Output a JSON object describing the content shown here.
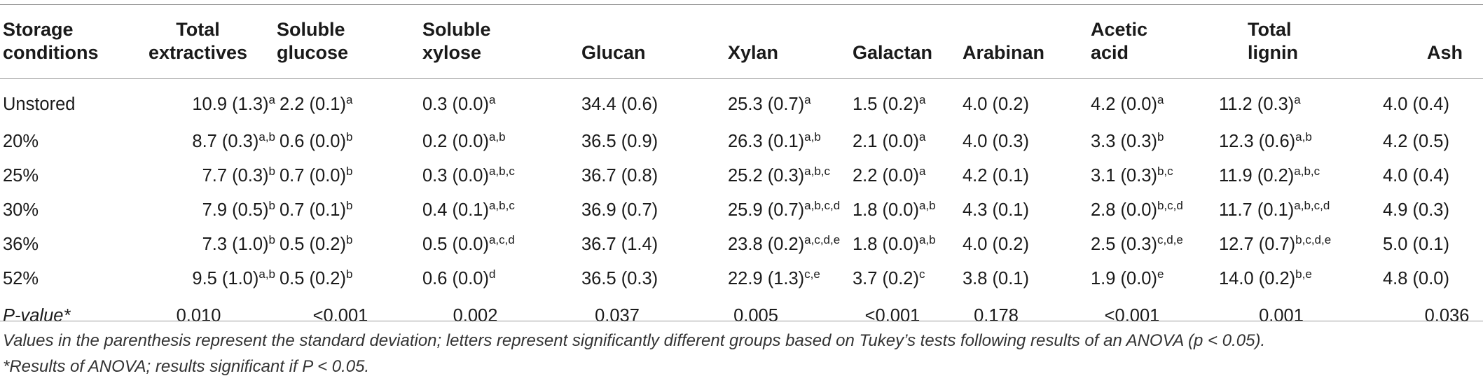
{
  "table": {
    "headers": [
      [
        "Storage",
        "conditions"
      ],
      [
        "Total",
        "extractives"
      ],
      [
        "Soluble",
        "glucose"
      ],
      [
        "Soluble",
        "xylose"
      ],
      [
        "",
        "Glucan"
      ],
      [
        "",
        "Xylan"
      ],
      [
        "",
        "Galactan"
      ],
      [
        "",
        "Arabinan"
      ],
      [
        "Acetic",
        "acid"
      ],
      [
        "Total",
        "lignin"
      ],
      [
        "",
        "Ash"
      ]
    ],
    "rows": [
      {
        "label": "Unstored",
        "cells": [
          {
            "v": "10.9 (1.3)",
            "s": "a"
          },
          {
            "v": "2.2 (0.1)",
            "s": "a"
          },
          {
            "v": "0.3 (0.0)",
            "s": "a"
          },
          {
            "v": "34.4 (0.6)",
            "s": ""
          },
          {
            "v": "25.3 (0.7)",
            "s": "a"
          },
          {
            "v": "1.5 (0.2)",
            "s": "a"
          },
          {
            "v": "4.0 (0.2)",
            "s": ""
          },
          {
            "v": "4.2 (0.0)",
            "s": "a"
          },
          {
            "v": "11.2 (0.3)",
            "s": "a"
          },
          {
            "v": "4.0 (0.4)",
            "s": ""
          }
        ]
      },
      {
        "label": "20%",
        "cells": [
          {
            "v": "8.7 (0.3)",
            "s": "a,b"
          },
          {
            "v": "0.6 (0.0)",
            "s": "b"
          },
          {
            "v": "0.2 (0.0)",
            "s": "a,b"
          },
          {
            "v": "36.5 (0.9)",
            "s": ""
          },
          {
            "v": "26.3 (0.1)",
            "s": "a,b"
          },
          {
            "v": "2.1 (0.0)",
            "s": "a"
          },
          {
            "v": "4.0 (0.3)",
            "s": ""
          },
          {
            "v": "3.3 (0.3)",
            "s": "b"
          },
          {
            "v": "12.3 (0.6)",
            "s": "a,b"
          },
          {
            "v": "4.2 (0.5)",
            "s": ""
          }
        ]
      },
      {
        "label": "25%",
        "cells": [
          {
            "v": "7.7 (0.3)",
            "s": "b"
          },
          {
            "v": "0.7 (0.0)",
            "s": "b"
          },
          {
            "v": "0.3 (0.0)",
            "s": "a,b,c"
          },
          {
            "v": "36.7 (0.8)",
            "s": ""
          },
          {
            "v": "25.2 (0.3)",
            "s": "a,b,c"
          },
          {
            "v": "2.2 (0.0)",
            "s": "a"
          },
          {
            "v": "4.2 (0.1)",
            "s": ""
          },
          {
            "v": "3.1 (0.3)",
            "s": "b,c"
          },
          {
            "v": "11.9 (0.2)",
            "s": "a,b,c"
          },
          {
            "v": "4.0 (0.4)",
            "s": ""
          }
        ]
      },
      {
        "label": "30%",
        "cells": [
          {
            "v": "7.9 (0.5)",
            "s": "b"
          },
          {
            "v": "0.7 (0.1)",
            "s": "b"
          },
          {
            "v": "0.4 (0.1)",
            "s": "a,b,c"
          },
          {
            "v": "36.9 (0.7)",
            "s": ""
          },
          {
            "v": "25.9 (0.7)",
            "s": "a,b,c,d"
          },
          {
            "v": "1.8 (0.0)",
            "s": "a,b"
          },
          {
            "v": "4.3 (0.1)",
            "s": ""
          },
          {
            "v": "2.8 (0.0)",
            "s": "b,c,d"
          },
          {
            "v": "11.7 (0.1)",
            "s": "a,b,c,d"
          },
          {
            "v": "4.9 (0.3)",
            "s": ""
          }
        ]
      },
      {
        "label": "36%",
        "cells": [
          {
            "v": "7.3 (1.0)",
            "s": "b"
          },
          {
            "v": "0.5 (0.2)",
            "s": "b"
          },
          {
            "v": "0.5 (0.0)",
            "s": "a,c,d"
          },
          {
            "v": "36.7 (1.4)",
            "s": ""
          },
          {
            "v": "23.8 (0.2)",
            "s": "a,c,d,e"
          },
          {
            "v": "1.8 (0.0)",
            "s": "a,b"
          },
          {
            "v": "4.0 (0.2)",
            "s": ""
          },
          {
            "v": "2.5 (0.3)",
            "s": "c,d,e"
          },
          {
            "v": "12.7 (0.7)",
            "s": "b,c,d,e"
          },
          {
            "v": "5.0 (0.1)",
            "s": ""
          }
        ]
      },
      {
        "label": "52%",
        "cells": [
          {
            "v": "9.5 (1.0)",
            "s": "a,b"
          },
          {
            "v": "0.5 (0.2)",
            "s": "b"
          },
          {
            "v": "0.6 (0.0)",
            "s": "d"
          },
          {
            "v": "36.5 (0.3)",
            "s": ""
          },
          {
            "v": "22.9 (1.3)",
            "s": "c,e"
          },
          {
            "v": "3.7 (0.2)",
            "s": "c"
          },
          {
            "v": "3.8 (0.1)",
            "s": ""
          },
          {
            "v": "1.9 (0.0)",
            "s": "e"
          },
          {
            "v": "14.0 (0.2)",
            "s": "b,e"
          },
          {
            "v": "4.8 (0.0)",
            "s": ""
          }
        ]
      }
    ],
    "pvalue_row": {
      "label": "P-value*",
      "values": [
        "0.010",
        "<0.001",
        "0.002",
        "0.037",
        "0.005",
        "<0.001",
        "0.178",
        "<0.001",
        "0.001",
        "0.036"
      ]
    }
  },
  "notes": {
    "line1": "Values in the parenthesis represent the standard deviation; letters represent significantly different groups based on Tukey’s tests following results of an ANOVA (p < 0.05).",
    "line2": "*Results of ANOVA; results significant if P < 0.05."
  }
}
